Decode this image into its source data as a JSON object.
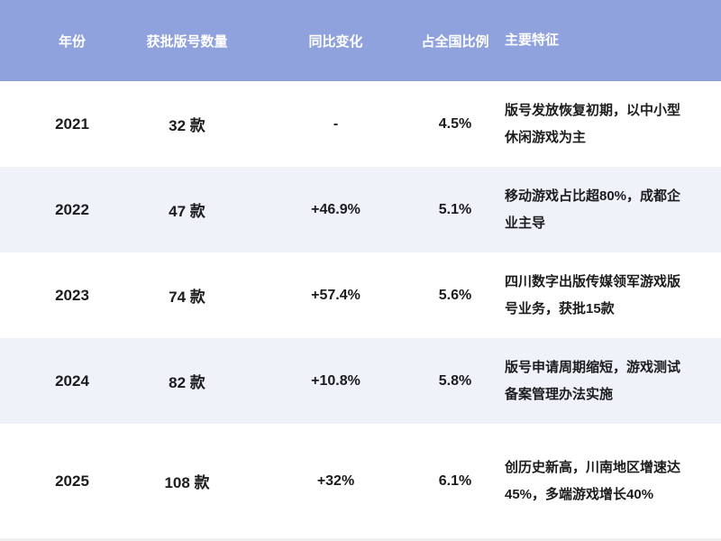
{
  "chart_data": {
    "type": "table",
    "title": "",
    "columns": [
      "年份",
      "获批版号数量",
      "同比变化",
      "占全国比例",
      "主要特征"
    ],
    "rows": [
      {
        "year": "2021",
        "count": "32 款",
        "yoy": "-",
        "share": "4.5%",
        "features": "版号发放恢复初期，以中小型休闲游戏为主"
      },
      {
        "year": "2022",
        "count": "47 款",
        "yoy": "+46.9%",
        "share": "5.1%",
        "features": "移动游戏占比超80%，成都企业主导"
      },
      {
        "year": "2023",
        "count": "74 款",
        "yoy": "+57.4%",
        "share": "5.6%",
        "features": "四川数字出版传媒领军游戏版号业务，获批15款"
      },
      {
        "year": "2024",
        "count": "82 款",
        "yoy": "+10.8%",
        "share": "5.8%",
        "features": "版号申请周期缩短，游戏测试备案管理办法实施"
      },
      {
        "year": "2025",
        "count": "108 款",
        "yoy": "+32%",
        "share": "6.1%",
        "features": "创历史新高，川南地区增速达45%，多端游戏增长40%"
      }
    ]
  },
  "colors": {
    "header_bg": "#90A2DE",
    "header_text": "#FFFFFF",
    "row_bg": "#FFFFFF",
    "row_alt_bg": "#F0F2FA",
    "text": "#1C1C1E",
    "bottom_strip": "#EDEFF1"
  }
}
